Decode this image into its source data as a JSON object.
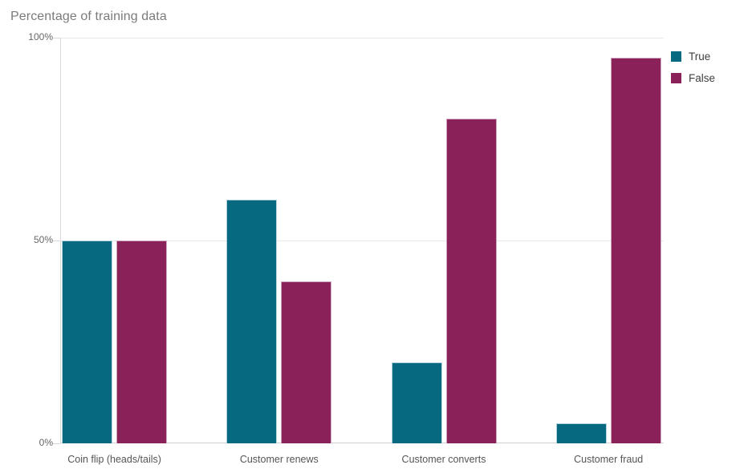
{
  "chart_data": {
    "type": "bar",
    "title": "Percentage of training data",
    "categories": [
      "Coin flip (heads/tails)",
      "Customer renews",
      "Customer converts",
      "Customer fraud"
    ],
    "series": [
      {
        "name": "True",
        "color": "#06697f",
        "edge_color": "#b5d3dd",
        "values": [
          50,
          60,
          20,
          5
        ]
      },
      {
        "name": "False",
        "color": "#8a2159",
        "edge_color": "#cfa6c0",
        "values": [
          50,
          40,
          80,
          95
        ]
      }
    ],
    "ylim": [
      0,
      100
    ],
    "y_ticks": [
      {
        "label": "0%",
        "value": 0
      },
      {
        "label": "50%",
        "value": 50
      },
      {
        "label": "100%",
        "value": 100
      }
    ],
    "xlabel": "",
    "ylabel": "",
    "grid": "horizontal",
    "legend_position": "top-right"
  }
}
